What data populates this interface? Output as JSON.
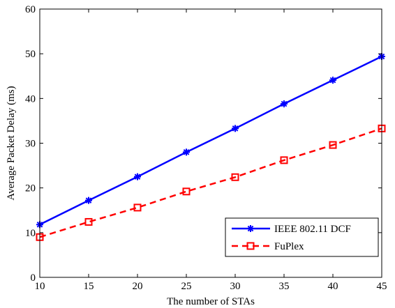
{
  "chart_data": {
    "type": "line",
    "title": "",
    "xlabel": "The number of STAs",
    "ylabel": "Average Packet Delay (ms)",
    "xlim": [
      10,
      45
    ],
    "ylim": [
      0,
      60
    ],
    "xticks": [
      10,
      15,
      20,
      25,
      30,
      35,
      40,
      45
    ],
    "yticks": [
      0,
      10,
      20,
      30,
      40,
      50,
      60
    ],
    "grid": false,
    "legend_position": "bottom-right",
    "x": [
      10,
      15,
      20,
      25,
      30,
      35,
      40,
      45
    ],
    "series": [
      {
        "name": "IEEE 802.11 DCF",
        "values": [
          11.8,
          17.2,
          22.5,
          28.0,
          33.3,
          38.8,
          44.1,
          49.4
        ],
        "color": "#0000ff",
        "line_style": "solid",
        "marker": "asterisk"
      },
      {
        "name": "FuPlex",
        "values": [
          9.0,
          12.4,
          15.6,
          19.2,
          22.4,
          26.2,
          29.6,
          33.3
        ],
        "color": "#ff0000",
        "line_style": "dashed",
        "marker": "square"
      }
    ]
  }
}
